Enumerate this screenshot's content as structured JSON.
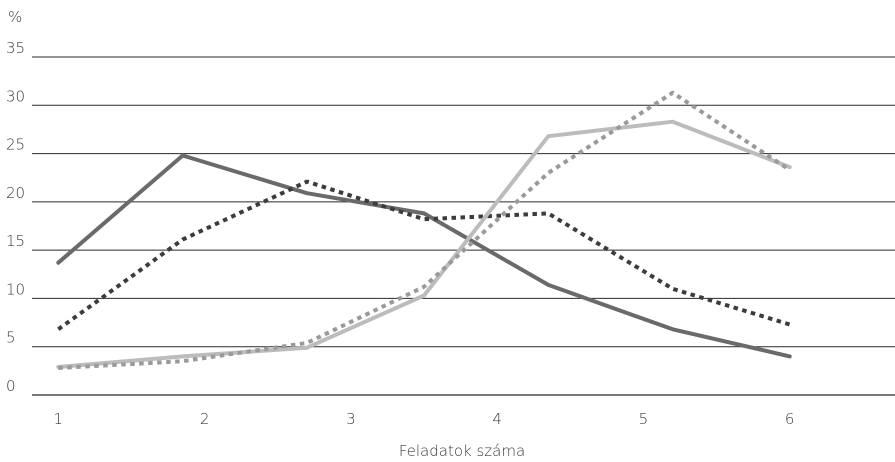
{
  "chart_data": {
    "type": "line",
    "title": "",
    "xlabel": "Feladatok száma",
    "ylabel": "%",
    "x_tick_labels": [
      "1",
      "2",
      "3",
      "4",
      "5",
      "6"
    ],
    "x_tick_values": [
      1,
      2,
      3,
      4,
      5,
      6
    ],
    "y_tick_labels": [
      "0",
      "5",
      "10",
      "15",
      "20",
      "25",
      "30",
      "35"
    ],
    "y_tick_values": [
      0,
      5,
      10,
      15,
      20,
      25,
      30,
      35
    ],
    "xlim": [
      0.82,
      6.72
    ],
    "ylim": [
      0,
      35
    ],
    "grid": "horizontal",
    "legend": "none",
    "series": [
      {
        "style": "solid",
        "color": "#6a6a6a",
        "x": [
          1,
          1.85,
          2.7,
          3.5,
          4.35,
          5.2,
          6
        ],
        "values": [
          13.7,
          24.8,
          20.9,
          18.8,
          11.4,
          6.8,
          4.0
        ]
      },
      {
        "style": "dotted",
        "color": "#3c3c3c",
        "x": [
          1,
          1.85,
          2.7,
          3.5,
          4.35,
          5.2,
          6
        ],
        "values": [
          6.8,
          16.1,
          22.1,
          18.2,
          18.8,
          11.0,
          7.3
        ]
      },
      {
        "style": "solid",
        "color": "#bcbcbc",
        "x": [
          1,
          1.85,
          2.7,
          3.5,
          4.35,
          5.2,
          6
        ],
        "values": [
          2.9,
          4.0,
          4.9,
          10.3,
          26.8,
          28.3,
          23.6
        ]
      },
      {
        "style": "dotted",
        "color": "#9a9a9a",
        "x": [
          1,
          1.85,
          2.7,
          3.5,
          4.35,
          5.2,
          6
        ],
        "values": [
          2.8,
          3.5,
          5.4,
          11.2,
          23.0,
          31.3,
          23.3
        ]
      }
    ]
  }
}
